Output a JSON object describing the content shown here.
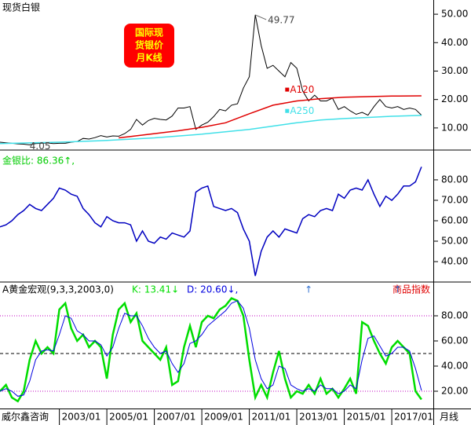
{
  "chart_data": [
    {
      "type": "line",
      "title": "现货白银",
      "badge": [
        "国际现",
        "货银价",
        "月K线"
      ],
      "x": [
        "2000/07",
        "2000/10",
        "2001/01",
        "2001/04",
        "2001/07",
        "2001/10",
        "2002/01",
        "2002/04",
        "2002/07",
        "2002/10",
        "2003/01",
        "2003/04",
        "2003/07",
        "2003/10",
        "2004/01",
        "2004/04",
        "2004/07",
        "2004/10",
        "2005/01",
        "2005/04",
        "2005/07",
        "2005/10",
        "2006/01",
        "2006/04",
        "2006/07",
        "2006/10",
        "2007/01",
        "2007/04",
        "2007/07",
        "2007/10",
        "2008/01",
        "2008/04",
        "2008/07",
        "2008/10",
        "2009/01",
        "2009/04",
        "2009/07",
        "2009/10",
        "2010/01",
        "2010/04",
        "2010/07",
        "2010/10",
        "2011/01",
        "2011/04",
        "2011/07",
        "2011/10",
        "2012/01",
        "2012/04",
        "2012/07",
        "2012/10",
        "2013/01",
        "2013/04",
        "2013/07",
        "2013/10",
        "2014/01",
        "2014/04",
        "2014/07",
        "2014/10",
        "2015/01",
        "2015/04",
        "2015/07",
        "2015/10",
        "2016/01",
        "2016/04",
        "2016/07",
        "2016/10",
        "2017/01",
        "2017/04",
        "2017/07",
        "2017/10",
        "2018/01",
        "2018/04"
      ],
      "xlim": [
        "2000/07",
        "2018/10"
      ],
      "ylim": [
        2.5,
        55
      ],
      "yticks": [
        {
          "value": 10,
          "label": "10.00"
        },
        {
          "value": 20,
          "label": "20.00"
        },
        {
          "value": 30,
          "label": "30.00"
        },
        {
          "value": 40,
          "label": "40.00"
        },
        {
          "value": 50,
          "label": "50.00"
        }
      ],
      "series": [
        {
          "name": "现货白银",
          "color": "#000000",
          "values": [
            5.0,
            4.8,
            4.6,
            4.4,
            4.3,
            4.05,
            4.5,
            4.6,
            4.7,
            4.5,
            4.6,
            4.6,
            5.0,
            5.2,
            6.3,
            6.1,
            6.6,
            7.3,
            6.8,
            7.2,
            7.1,
            8.0,
            9.5,
            13.0,
            11.0,
            12.6,
            13.4,
            13.0,
            12.8,
            14.2,
            17.0,
            17.0,
            17.5,
            9.5,
            11.0,
            12.0,
            14.0,
            16.5,
            16.0,
            18.0,
            18.5,
            24.0,
            28.0,
            49.77,
            39.0,
            31.0,
            32,
            30,
            28,
            33,
            31,
            23,
            19.5,
            21.5,
            19.5,
            19.5,
            20.5,
            16.5,
            17.5,
            16,
            14.8,
            15.5,
            14.5,
            17.5,
            20,
            17.5,
            17,
            17.5,
            16.5,
            17,
            16.5,
            14.5
          ]
        },
        {
          "name": "A120",
          "color": "#e00000",
          "x": [
            "2005/07",
            "2006/01",
            "2007/01",
            "2008/01",
            "2009/01",
            "2010/01",
            "2011/01",
            "2012/01",
            "2013/01",
            "2014/01",
            "2015/01",
            "2016/01",
            "2017/01",
            "2018/04"
          ],
          "values": [
            6.5,
            7.0,
            8.0,
            9.0,
            10.2,
            11.8,
            15.0,
            18.0,
            19.5,
            20.3,
            20.8,
            21.0,
            21.2,
            21.3
          ]
        },
        {
          "name": "A250",
          "color": "#40e0e8",
          "x": [
            "2000/07",
            "2003/01",
            "2005/01",
            "2007/01",
            "2009/01",
            "2011/01",
            "2013/01",
            "2014/01",
            "2015/01",
            "2016/01",
            "2017/01",
            "2018/04"
          ],
          "values": [
            4.5,
            5.0,
            5.6,
            6.5,
            7.8,
            9.5,
            11.8,
            12.8,
            13.3,
            13.7,
            14.1,
            14.4
          ]
        }
      ],
      "annotations": [
        {
          "x": "2011/04",
          "value": 49.77
        },
        {
          "x": "2001/10",
          "value": 4.05
        }
      ]
    },
    {
      "type": "line",
      "header": "金银比: 86.36↑,",
      "x": [
        "2000/07",
        "2000/10",
        "2001/01",
        "2001/04",
        "2001/07",
        "2001/10",
        "2002/01",
        "2002/04",
        "2002/07",
        "2002/10",
        "2003/01",
        "2003/04",
        "2003/07",
        "2003/10",
        "2004/01",
        "2004/04",
        "2004/07",
        "2004/10",
        "2005/01",
        "2005/04",
        "2005/07",
        "2005/10",
        "2006/01",
        "2006/04",
        "2006/07",
        "2006/10",
        "2007/01",
        "2007/04",
        "2007/07",
        "2007/10",
        "2008/01",
        "2008/04",
        "2008/07",
        "2008/10",
        "2009/01",
        "2009/04",
        "2009/07",
        "2009/10",
        "2010/01",
        "2010/04",
        "2010/07",
        "2010/10",
        "2011/01",
        "2011/04",
        "2011/07",
        "2011/10",
        "2012/01",
        "2012/04",
        "2012/07",
        "2012/10",
        "2013/01",
        "2013/04",
        "2013/07",
        "2013/10",
        "2014/01",
        "2014/04",
        "2014/07",
        "2014/10",
        "2015/01",
        "2015/04",
        "2015/07",
        "2015/10",
        "2016/01",
        "2016/04",
        "2016/07",
        "2016/10",
        "2017/01",
        "2017/04",
        "2017/07",
        "2017/10",
        "2018/01",
        "2018/04"
      ],
      "xlim": [
        "2000/07",
        "2018/10"
      ],
      "ylim": [
        30.4,
        94.2
      ],
      "yticks": [
        {
          "value": 40,
          "label": "40.00"
        },
        {
          "value": 50,
          "label": "50.00"
        },
        {
          "value": 60,
          "label": "60.00"
        },
        {
          "value": 70,
          "label": "70.00"
        },
        {
          "value": 80,
          "label": "80.00"
        }
      ],
      "series": [
        {
          "name": "金银比",
          "color": "#0000c0",
          "values": [
            57,
            58,
            60,
            63,
            65,
            68,
            66,
            65,
            68,
            71,
            76,
            75,
            73,
            72,
            66,
            63,
            59,
            57,
            62,
            60,
            59,
            59,
            58,
            50,
            55,
            50,
            49,
            52,
            51,
            54,
            53,
            52,
            55,
            74,
            76,
            77,
            67,
            66,
            65,
            66,
            64,
            56,
            50,
            33,
            45,
            52,
            55,
            52,
            56,
            55,
            54,
            61,
            63,
            62,
            65,
            66,
            65,
            73,
            71,
            75,
            76,
            75,
            80,
            73,
            67,
            72,
            70,
            73,
            77,
            77,
            79,
            86.36
          ]
        }
      ]
    },
    {
      "type": "line",
      "title": "A黄金宏观(9,3,3,2003,0)",
      "corner_text": "商品指数",
      "x": [
        "2000/07",
        "2000/10",
        "2001/01",
        "2001/04",
        "2001/07",
        "2001/10",
        "2002/01",
        "2002/04",
        "2002/07",
        "2002/10",
        "2003/01",
        "2003/04",
        "2003/07",
        "2003/10",
        "2004/01",
        "2004/04",
        "2004/07",
        "2004/10",
        "2005/01",
        "2005/04",
        "2005/07",
        "2005/10",
        "2006/01",
        "2006/04",
        "2006/07",
        "2006/10",
        "2007/01",
        "2007/04",
        "2007/07",
        "2007/10",
        "2008/01",
        "2008/04",
        "2008/07",
        "2008/10",
        "2009/01",
        "2009/04",
        "2009/07",
        "2009/10",
        "2010/01",
        "2010/04",
        "2010/07",
        "2010/10",
        "2011/01",
        "2011/04",
        "2011/07",
        "2011/10",
        "2012/01",
        "2012/04",
        "2012/07",
        "2012/10",
        "2013/01",
        "2013/04",
        "2013/07",
        "2013/10",
        "2014/01",
        "2014/04",
        "2014/07",
        "2014/10",
        "2015/01",
        "2015/04",
        "2015/07",
        "2015/10",
        "2016/01",
        "2016/04",
        "2016/07",
        "2016/10",
        "2017/01",
        "2017/04",
        "2017/07",
        "2017/10",
        "2018/01",
        "2018/04"
      ],
      "xlim": [
        "2000/07",
        "2018/10"
      ],
      "ylim": [
        6.25,
        106.25
      ],
      "yticks": [
        {
          "value": 20,
          "label": "20.00"
        },
        {
          "value": 40,
          "label": "40.00"
        },
        {
          "value": 60,
          "label": "60.00"
        },
        {
          "value": 80,
          "label": "80.00"
        }
      ],
      "ref_lines": [
        {
          "value": 80,
          "color": "#c000c0"
        },
        {
          "value": 50,
          "color": "#000000"
        },
        {
          "value": 20,
          "color": "#c000c0"
        }
      ],
      "arrows": [
        {
          "x": "2013/07",
          "text": "↑"
        },
        {
          "x": "2017/04",
          "text": "↑"
        }
      ],
      "series": [
        {
          "header": "K: 13.41↓",
          "color": "#00dd00",
          "width": 2.5,
          "values": [
            20,
            25,
            15,
            12,
            20,
            45,
            60,
            50,
            55,
            50,
            85,
            90,
            70,
            60,
            65,
            55,
            60,
            55,
            30,
            65,
            85,
            90,
            75,
            82,
            60,
            55,
            50,
            45,
            55,
            25,
            28,
            55,
            72,
            55,
            75,
            80,
            78,
            85,
            88,
            94,
            92,
            80,
            45,
            15,
            25,
            15,
            35,
            52,
            30,
            15,
            20,
            18,
            25,
            18,
            30,
            18,
            22,
            15,
            22,
            30,
            18,
            75,
            72,
            60,
            50,
            42,
            55,
            60,
            55,
            50,
            20,
            13.41
          ]
        },
        {
          "header": "D: 20.60↓,",
          "color": "#0000e0",
          "width": 1,
          "values": [
            20,
            22,
            20,
            16,
            17,
            28,
            45,
            52,
            53,
            52,
            65,
            80,
            78,
            68,
            65,
            60,
            60,
            57,
            48,
            55,
            70,
            82,
            80,
            80,
            72,
            62,
            55,
            50,
            52,
            42,
            35,
            42,
            58,
            60,
            65,
            72,
            76,
            80,
            84,
            90,
            92,
            86,
            70,
            45,
            30,
            22,
            25,
            40,
            38,
            25,
            22,
            20,
            22,
            20,
            25,
            22,
            22,
            18,
            20,
            25,
            22,
            45,
            62,
            64,
            56,
            48,
            50,
            55,
            55,
            52,
            38,
            20.6
          ]
        }
      ],
      "xticks": [
        "2003/01",
        "2005/01",
        "2007/01",
        "2009/01",
        "2011/01",
        "2013/01",
        "2015/01",
        "2017/01"
      ],
      "source": "威尔鑫咨询",
      "period": "月线"
    }
  ]
}
